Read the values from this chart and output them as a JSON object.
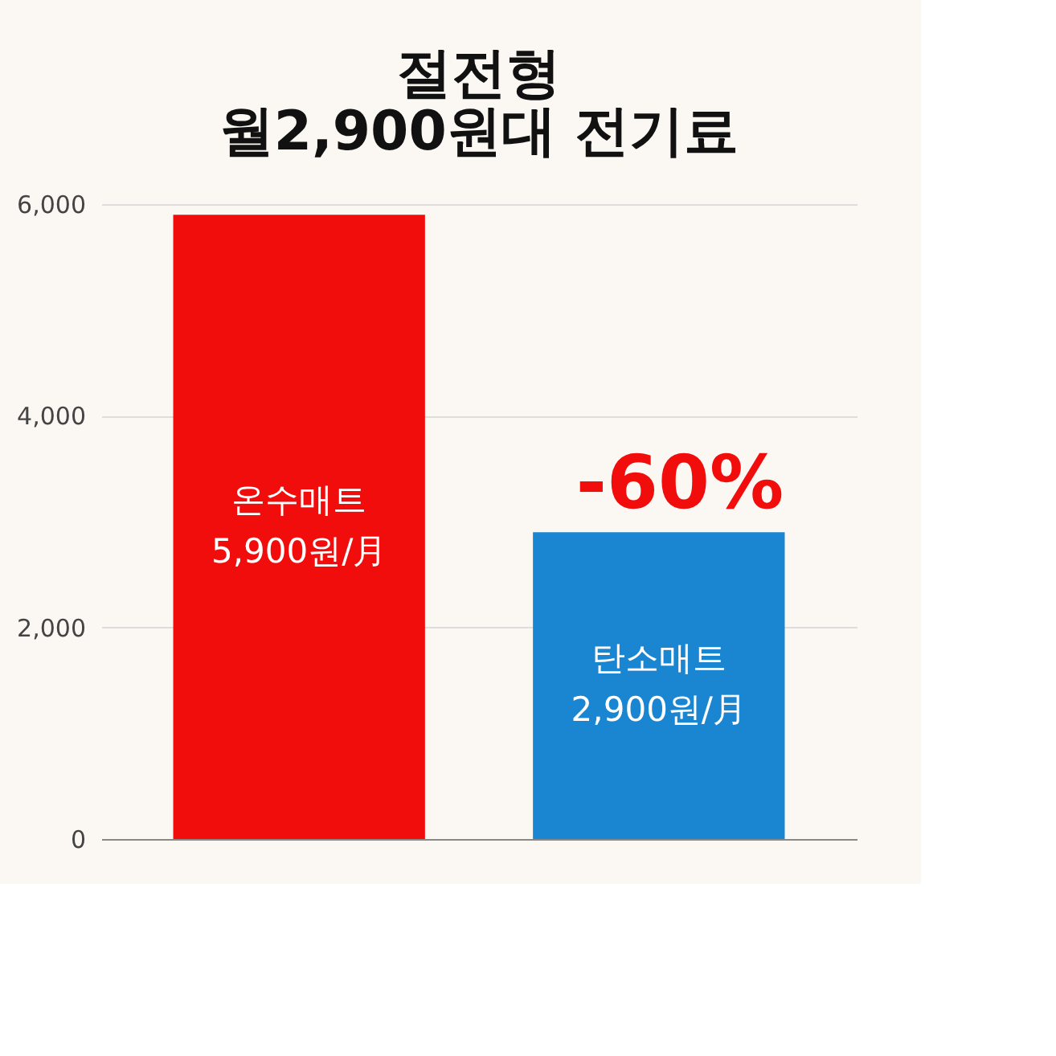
{
  "chart_data": {
    "type": "bar",
    "title": [
      "절전형",
      "월2,900원대 전기료"
    ],
    "categories": [
      "온수매트",
      "탄소매트"
    ],
    "values": [
      5900,
      2900
    ],
    "colors": [
      "#f20d0d",
      "#1a85d0"
    ],
    "value_labels": [
      "5,900원/月",
      "2,900원/月"
    ],
    "ylim": [
      0,
      6000
    ],
    "yticks": [
      {
        "value": 0,
        "label": "0"
      },
      {
        "value": 2000,
        "label": "2,000"
      },
      {
        "value": 4000,
        "label": "4,000"
      },
      {
        "value": 6000,
        "label": "6,000"
      }
    ],
    "grid": "y",
    "tick_labels": "y",
    "annotations": [
      "-60%"
    ]
  }
}
